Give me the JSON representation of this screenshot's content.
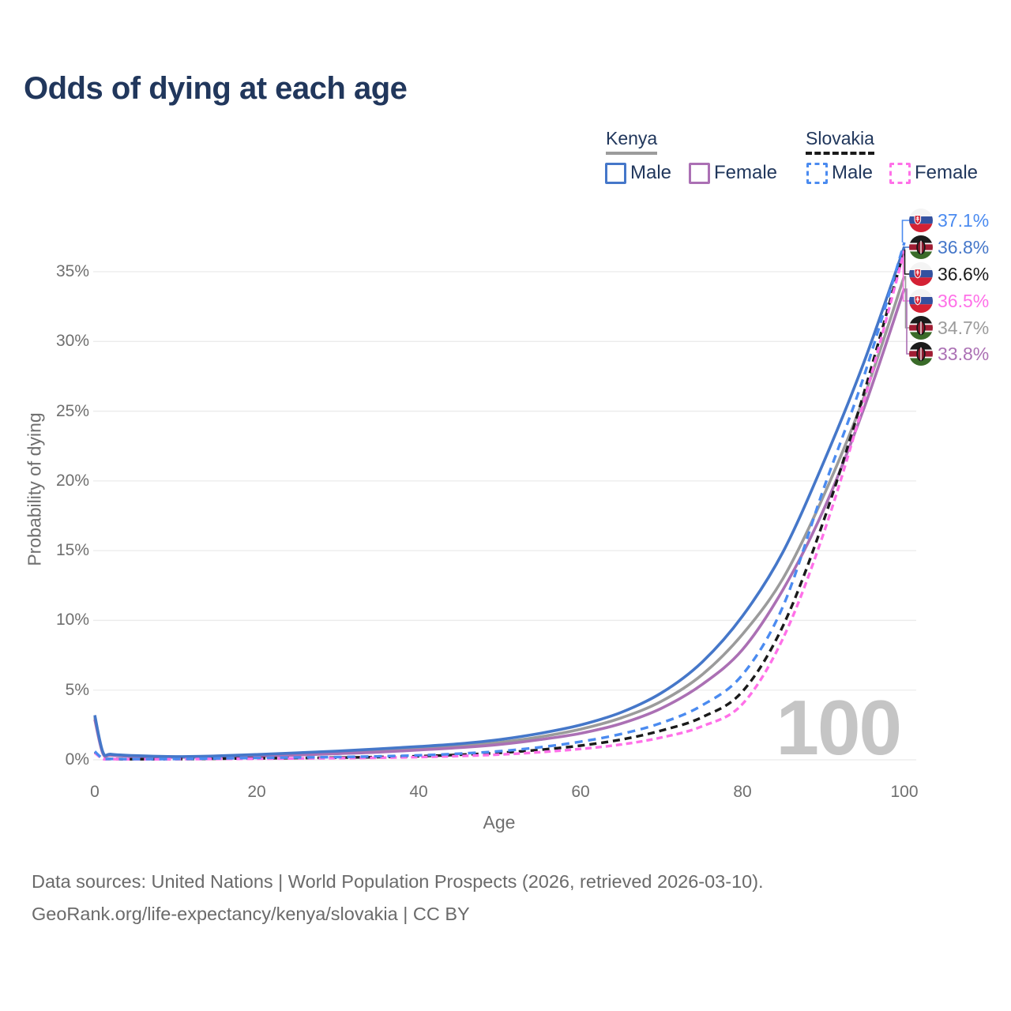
{
  "title": "Odds of dying at each age",
  "colors": {
    "kenya_male": "#4577c9",
    "kenya_all": "#9b9b9b",
    "kenya_female": "#ab70b4",
    "slovakia_male": "#4b8bf0",
    "slovakia_all": "#1a1a1a",
    "slovakia_female": "#ff70e8",
    "title_text": "#21375c",
    "legend_text": "#21375c",
    "axis_text": "#6f6f6f",
    "grid": "#ebebeb",
    "annotation": "#c5c5c5",
    "footer_text": "#6a6a6a"
  },
  "legend": {
    "groups": [
      {
        "country": "Kenya",
        "style": "solid",
        "underline_color": "#9b9b9b",
        "items": [
          {
            "label": "Male",
            "color_key": "kenya_male"
          },
          {
            "label": "Female",
            "color_key": "kenya_female"
          }
        ]
      },
      {
        "country": "Slovakia",
        "style": "dashed",
        "underline_color": "#1a1a1a",
        "items": [
          {
            "label": "Male",
            "color_key": "slovakia_male"
          },
          {
            "label": "Female",
            "color_key": "slovakia_female"
          }
        ]
      }
    ]
  },
  "chart_data": {
    "type": "line",
    "title": "Odds of dying at each age",
    "xlabel": "Age",
    "ylabel": "Probability of dying",
    "xlim": [
      0,
      100
    ],
    "ylim_percent": [
      0,
      37.5
    ],
    "grid": true,
    "x_ticks": [
      0,
      20,
      40,
      60,
      80,
      100
    ],
    "y_ticks": [
      "0%",
      "5%",
      "10%",
      "15%",
      "20%",
      "25%",
      "30%",
      "35%"
    ],
    "annotation": "100",
    "ages": [
      0,
      1,
      2,
      5,
      10,
      15,
      20,
      25,
      30,
      35,
      40,
      45,
      50,
      55,
      60,
      65,
      70,
      75,
      80,
      85,
      90,
      95,
      100
    ],
    "series": [
      {
        "name": "Kenya Male",
        "key": "kenya_male",
        "dash": false,
        "values_pct": [
          3.2,
          0.55,
          0.4,
          0.3,
          0.23,
          0.28,
          0.38,
          0.5,
          0.63,
          0.78,
          0.95,
          1.15,
          1.45,
          1.9,
          2.5,
          3.4,
          4.8,
          7.0,
          10.3,
          14.9,
          21.3,
          28.5,
          36.8
        ]
      },
      {
        "name": "Kenya (all)",
        "key": "kenya_all",
        "dash": false,
        "values_pct": [
          3.05,
          0.5,
          0.36,
          0.27,
          0.2,
          0.24,
          0.32,
          0.42,
          0.53,
          0.66,
          0.82,
          1.0,
          1.25,
          1.65,
          2.2,
          3.0,
          4.2,
          6.1,
          9.0,
          13.0,
          18.9,
          26.0,
          34.7
        ]
      },
      {
        "name": "Kenya Female",
        "key": "kenya_female",
        "dash": false,
        "values_pct": [
          2.9,
          0.45,
          0.33,
          0.24,
          0.18,
          0.2,
          0.26,
          0.34,
          0.44,
          0.55,
          0.7,
          0.87,
          1.1,
          1.45,
          1.9,
          2.6,
          3.7,
          5.4,
          7.9,
          12.2,
          17.9,
          25.2,
          33.8
        ]
      },
      {
        "name": "Slovakia Male",
        "key": "slovakia_male",
        "dash": true,
        "values_pct": [
          0.6,
          0.1,
          0.07,
          0.05,
          0.06,
          0.1,
          0.14,
          0.17,
          0.2,
          0.25,
          0.32,
          0.44,
          0.62,
          0.9,
          1.3,
          1.85,
          2.65,
          3.9,
          6.1,
          11.0,
          19.4,
          27.5,
          37.1
        ]
      },
      {
        "name": "Slovakia (all)",
        "key": "slovakia_all",
        "dash": true,
        "values_pct": [
          0.55,
          0.08,
          0.06,
          0.045,
          0.05,
          0.08,
          0.11,
          0.13,
          0.16,
          0.2,
          0.26,
          0.36,
          0.5,
          0.72,
          1.02,
          1.45,
          2.1,
          3.05,
          4.9,
          9.6,
          17.1,
          26.3,
          36.6
        ]
      },
      {
        "name": "Slovakia Female",
        "key": "slovakia_female",
        "dash": true,
        "values_pct": [
          0.5,
          0.07,
          0.05,
          0.04,
          0.045,
          0.06,
          0.08,
          0.1,
          0.12,
          0.15,
          0.2,
          0.27,
          0.38,
          0.55,
          0.78,
          1.1,
          1.6,
          2.4,
          4.0,
          8.7,
          16.2,
          25.7,
          36.5
        ]
      }
    ]
  },
  "end_labels": [
    {
      "value": "37.1%",
      "flag": "slovakia",
      "series_key": "slovakia_male"
    },
    {
      "value": "36.8%",
      "flag": "kenya",
      "series_key": "kenya_male"
    },
    {
      "value": "36.6%",
      "flag": "slovakia",
      "series_key": "slovakia_all"
    },
    {
      "value": "36.5%",
      "flag": "slovakia",
      "series_key": "slovakia_female"
    },
    {
      "value": "34.7%",
      "flag": "kenya",
      "series_key": "kenya_all"
    },
    {
      "value": "33.8%",
      "flag": "kenya",
      "series_key": "kenya_female"
    }
  ],
  "footer": {
    "line1": "Data sources: United Nations | World Population Prospects (2026, retrieved 2026-03-10).",
    "line2": "GeoRank.org/life-expectancy/kenya/slovakia | CC BY"
  }
}
